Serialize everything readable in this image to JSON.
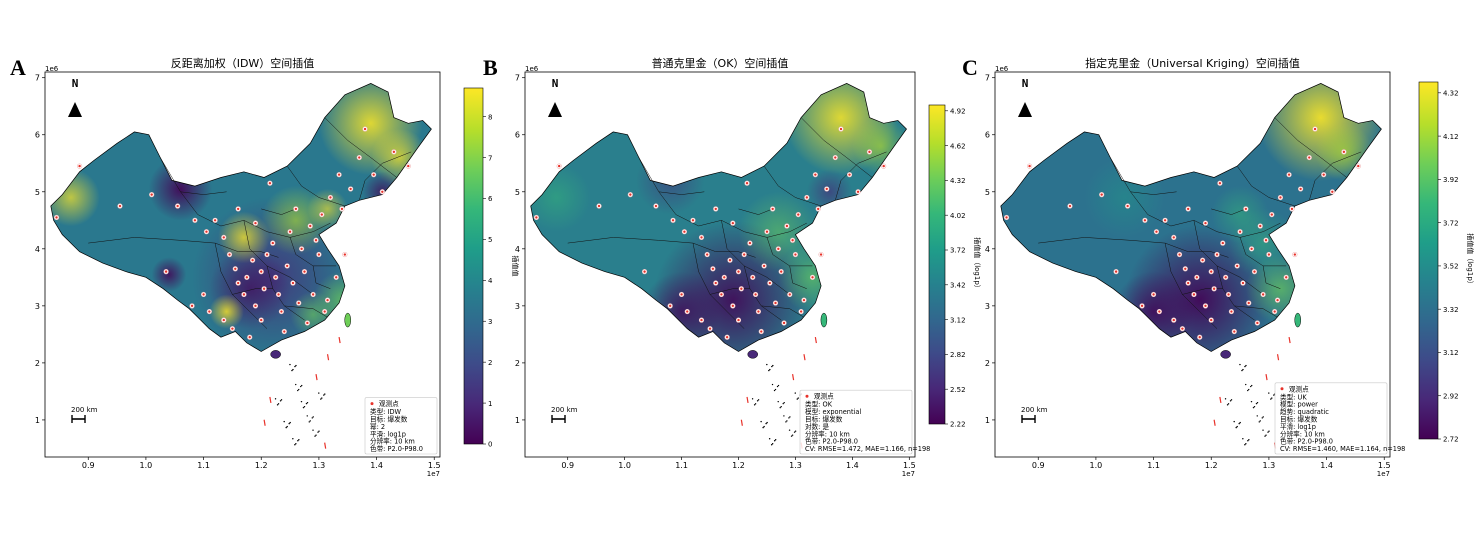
{
  "colors": {
    "viridis": [
      "#440154",
      "#482878",
      "#3e4a89",
      "#31688e",
      "#26828e",
      "#1f9e89",
      "#35b779",
      "#6ece58",
      "#b5de2b",
      "#fde725"
    ],
    "point_fill": "#e8322a",
    "point_ring": "#ffffff",
    "border": "#000000"
  },
  "common": {
    "north_label": "N",
    "north_icon": "north-arrow-icon",
    "scale_label": "200 km",
    "legend_point_label": "观测点",
    "x_offset_label": "1e7",
    "y_offset_label": "1e6",
    "x_ticks": [
      "0.9",
      "1.0",
      "1.1",
      "1.2",
      "1.3",
      "1.4",
      "1.5"
    ],
    "y_ticks": [
      "1",
      "2",
      "3",
      "4",
      "5",
      "6",
      "7"
    ]
  },
  "chart_data": [
    {
      "type": "heatmap",
      "letter": "A",
      "title": "反距离加权（IDW）空间插值",
      "xlim": [
        8.25,
        15.1
      ],
      "ylim": [
        0.35,
        7.1
      ],
      "x_unit": "1e6 m (axis offset 1e7)",
      "colorbar": {
        "label": "插值值",
        "range": [
          0,
          8.7
        ],
        "ticks": [
          "0",
          "1",
          "2",
          "3",
          "4",
          "5",
          "6",
          "7",
          "8"
        ],
        "tick_values": [
          0,
          1,
          2,
          3,
          4,
          5,
          6,
          7,
          8
        ]
      },
      "legend_lines": [
        "类型: IDW",
        "目标: 爆发数",
        "幂: 2",
        "平滑: log1p",
        "分辨率: 10 km",
        "色带: P2.0-P98.0"
      ]
    },
    {
      "type": "heatmap",
      "letter": "B",
      "title": "普通克里金（OK）空间插值",
      "xlim": [
        8.25,
        15.1
      ],
      "ylim": [
        0.35,
        7.1
      ],
      "colorbar": {
        "label": "插值值（log1p）",
        "range": [
          2.22,
          4.97
        ],
        "ticks": [
          "2.22",
          "2.52",
          "2.82",
          "3.12",
          "3.42",
          "3.72",
          "4.02",
          "4.32",
          "4.62",
          "4.92"
        ],
        "tick_values": [
          2.22,
          2.52,
          2.82,
          3.12,
          3.42,
          3.72,
          4.02,
          4.32,
          4.62,
          4.92
        ]
      },
      "legend_lines": [
        "类型: OK",
        "模型: exponential",
        "目标: 爆发数",
        "对数: 是",
        "分辨率: 10 km",
        "色带: P2.0-P98.0",
        "CV: RMSE=1.472, MAE=1.166, n=198"
      ]
    },
    {
      "type": "heatmap",
      "letter": "C",
      "title": "指定克里金（Universal Kriging）空间插值",
      "xlim": [
        8.25,
        15.1
      ],
      "ylim": [
        0.35,
        7.1
      ],
      "colorbar": {
        "label": "插值值（log1p）",
        "range": [
          2.72,
          4.37
        ],
        "ticks": [
          "2.72",
          "2.92",
          "3.12",
          "3.32",
          "3.52",
          "3.72",
          "3.92",
          "4.12",
          "4.32"
        ],
        "tick_values": [
          2.72,
          2.92,
          3.12,
          3.32,
          3.52,
          3.72,
          3.92,
          4.12,
          4.32
        ]
      },
      "legend_lines": [
        "类型: UK",
        "模型: power",
        "趋势: quadratic",
        "目标: 爆发数",
        "平滑: log1p",
        "分辨率: 10 km",
        "色带: P2.0-P98.0",
        "CV: RMSE=1.460, MAE=1.164, n=198"
      ]
    }
  ]
}
